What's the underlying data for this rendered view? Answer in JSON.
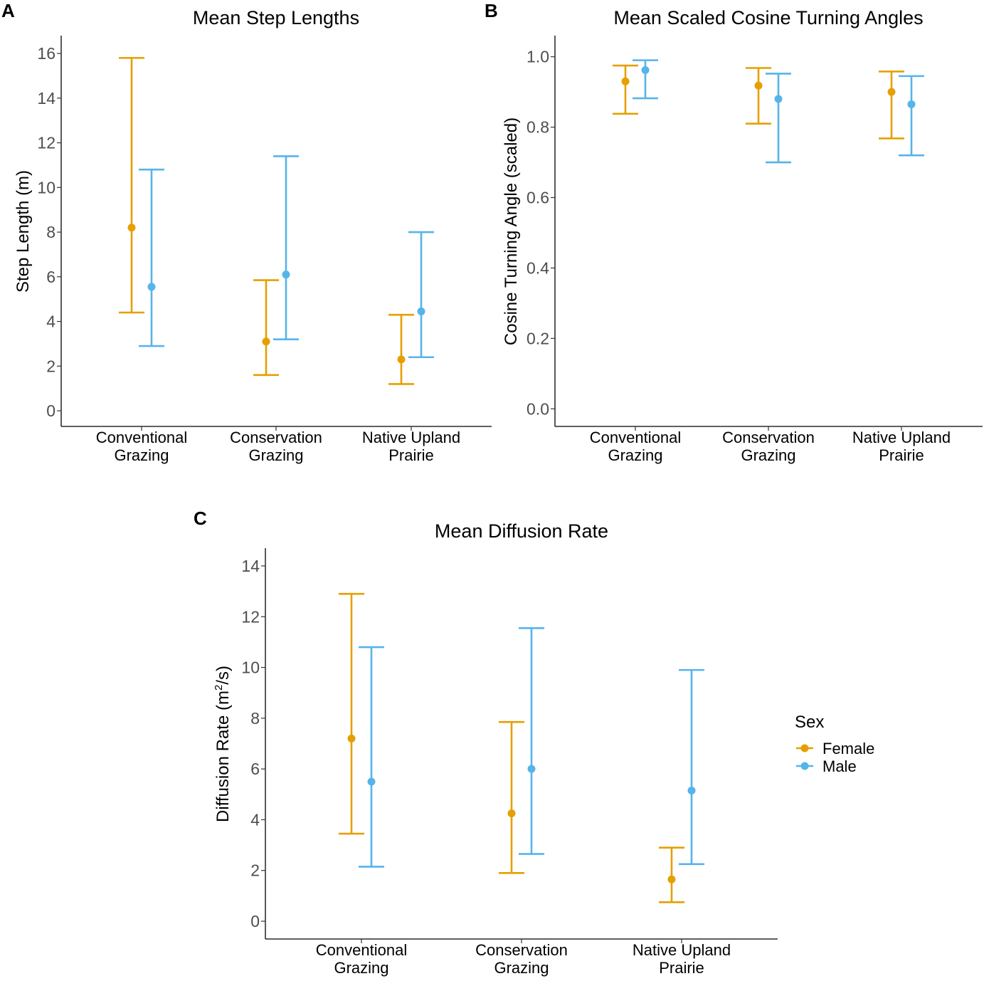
{
  "colors": {
    "female": "#E69F00",
    "male": "#56B4E9"
  },
  "legend": {
    "title": "Sex",
    "entries": [
      {
        "key": "female",
        "label": "Female"
      },
      {
        "key": "male",
        "label": "Male"
      }
    ]
  },
  "chart_data": [
    {
      "panel": "A",
      "type": "errorbar",
      "title": "Mean Step Lengths",
      "ylabel": "Step Length (m)",
      "ylabel_sup": "",
      "ylabel_tail": "",
      "xlabel": "",
      "categories": [
        [
          "Conventional",
          "Grazing"
        ],
        [
          "Conservation",
          "Grazing"
        ],
        [
          "Native Upland",
          "Prairie"
        ]
      ],
      "ylim": [
        -0.7,
        16.8
      ],
      "yticks": [
        0,
        2,
        4,
        6,
        8,
        10,
        12,
        14,
        16
      ],
      "ytick_labels": [
        "0",
        "2",
        "4",
        "6",
        "8",
        "10",
        "12",
        "14",
        "16"
      ],
      "series": [
        {
          "name": "Female",
          "key": "female",
          "mean": [
            8.2,
            3.1,
            2.3
          ],
          "lower": [
            4.4,
            1.6,
            1.2
          ],
          "upper": [
            15.8,
            5.85,
            4.3
          ]
        },
        {
          "name": "Male",
          "key": "male",
          "mean": [
            5.55,
            6.1,
            4.45
          ],
          "lower": [
            2.9,
            3.2,
            2.4
          ],
          "upper": [
            10.8,
            11.4,
            8.0
          ]
        }
      ]
    },
    {
      "panel": "B",
      "type": "errorbar",
      "title": "Mean Scaled Cosine Turning Angles",
      "ylabel": "Cosine Turning Angle (scaled)",
      "ylabel_sup": "",
      "ylabel_tail": "",
      "xlabel": "",
      "categories": [
        [
          "Conventional",
          "Grazing"
        ],
        [
          "Conservation",
          "Grazing"
        ],
        [
          "Native Upland",
          "Prairie"
        ]
      ],
      "ylim": [
        -0.05,
        1.06
      ],
      "yticks": [
        0.0,
        0.2,
        0.4,
        0.6,
        0.8,
        1.0
      ],
      "ytick_labels": [
        "0.0",
        "0.2",
        "0.4",
        "0.6",
        "0.8",
        "1.0"
      ],
      "series": [
        {
          "name": "Female",
          "key": "female",
          "mean": [
            0.93,
            0.918,
            0.9
          ],
          "lower": [
            0.838,
            0.81,
            0.768
          ],
          "upper": [
            0.975,
            0.968,
            0.958
          ]
        },
        {
          "name": "Male",
          "key": "male",
          "mean": [
            0.962,
            0.88,
            0.865
          ],
          "lower": [
            0.882,
            0.7,
            0.72
          ],
          "upper": [
            0.99,
            0.952,
            0.945
          ]
        }
      ]
    },
    {
      "panel": "C",
      "type": "errorbar",
      "title": "Mean Diffusion Rate",
      "ylabel": "Diffusion Rate (m",
      "ylabel_sup": "2",
      "ylabel_tail": "/s)",
      "xlabel": "",
      "categories": [
        [
          "Conventional",
          "Grazing"
        ],
        [
          "Conservation",
          "Grazing"
        ],
        [
          "Native Upland",
          "Prairie"
        ]
      ],
      "ylim": [
        -0.7,
        14.7
      ],
      "yticks": [
        0,
        2,
        4,
        6,
        8,
        10,
        12,
        14
      ],
      "ytick_labels": [
        "0",
        "2",
        "4",
        "6",
        "8",
        "10",
        "12",
        "14"
      ],
      "series": [
        {
          "name": "Female",
          "key": "female",
          "mean": [
            7.2,
            4.25,
            1.65
          ],
          "lower": [
            3.45,
            1.9,
            0.75
          ],
          "upper": [
            12.9,
            7.85,
            2.9
          ]
        },
        {
          "name": "Male",
          "key": "male",
          "mean": [
            5.5,
            6.0,
            5.15
          ],
          "lower": [
            2.15,
            2.65,
            2.25
          ],
          "upper": [
            10.8,
            11.55,
            9.9
          ]
        }
      ]
    }
  ]
}
